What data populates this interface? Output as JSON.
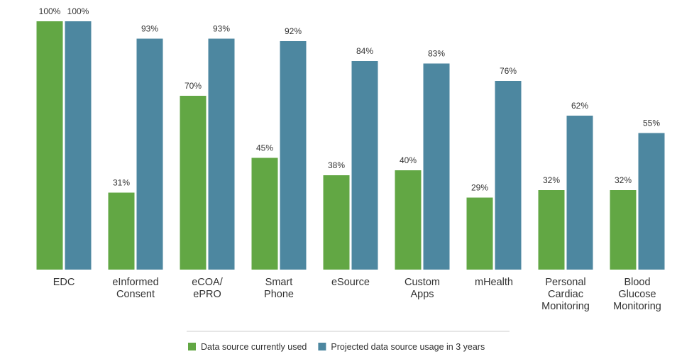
{
  "chart_data": {
    "type": "bar",
    "categories": [
      "EDC",
      "eInformed\nConsent",
      "eCOA/\nePRO",
      "Smart\nPhone",
      "eSource",
      "Custom\nApps",
      "mHealth",
      "Personal\nCardiac\nMonitoring",
      "Blood\nGlucose\nMonitoring"
    ],
    "series": [
      {
        "name": "Data source currently used",
        "color": "#62a744",
        "values": [
          100,
          31,
          70,
          45,
          38,
          40,
          29,
          32,
          32
        ],
        "value_labels": [
          "100%",
          "31%",
          "70%",
          "45%",
          "38%",
          "40%",
          "29%",
          "32%",
          "32%"
        ]
      },
      {
        "name": "Projected data source usage in 3 years",
        "color": "#4d87a0",
        "values": [
          100,
          93,
          93,
          92,
          84,
          83,
          76,
          62,
          55
        ],
        "value_labels": [
          "100%",
          "93%",
          "93%",
          "92%",
          "84%",
          "83%",
          "76%",
          "62%",
          "55%"
        ]
      }
    ],
    "ylim": [
      0,
      100
    ],
    "legend": "bottom"
  }
}
